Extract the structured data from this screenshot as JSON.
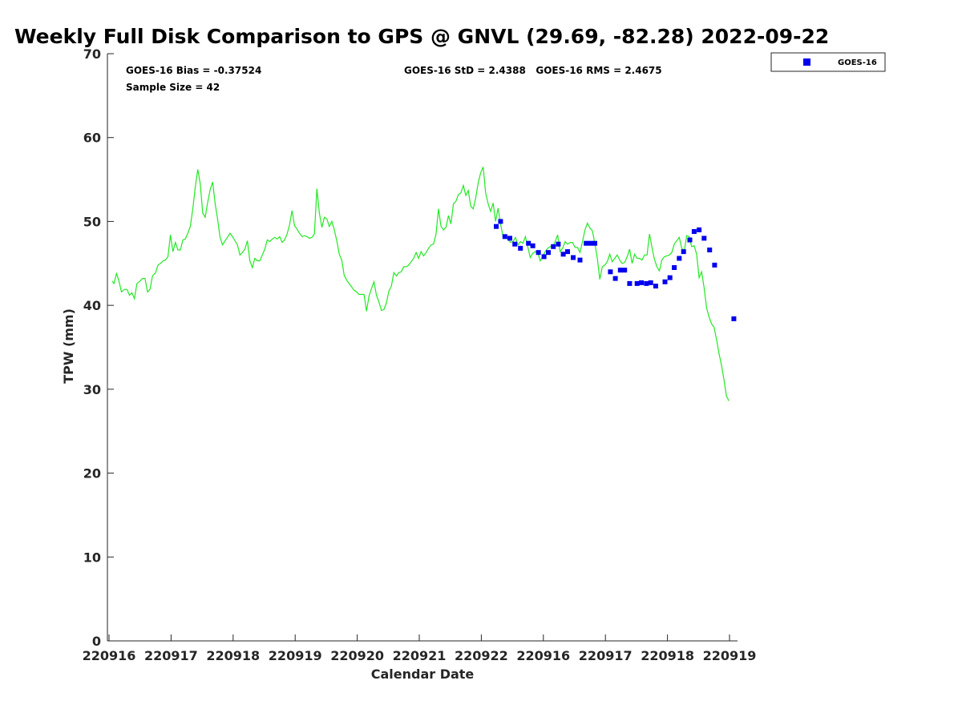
{
  "chart_data": {
    "type": "line",
    "title": "Weekly Full Disk Comparison to GPS @ GNVL (29.69, -82.28) 2022-09-22",
    "xlabel": "Calendar Date",
    "ylabel": "TPW (mm)",
    "ylim": [
      0,
      70
    ],
    "yticks": [
      0,
      10,
      20,
      30,
      40,
      50,
      60,
      70
    ],
    "xlim": [
      0,
      10.15
    ],
    "xticks": [
      {
        "v": 0,
        "label": "220916"
      },
      {
        "v": 1,
        "label": "220917"
      },
      {
        "v": 2,
        "label": "220918"
      },
      {
        "v": 3,
        "label": "220919"
      },
      {
        "v": 4,
        "label": "220920"
      },
      {
        "v": 5,
        "label": "220921"
      },
      {
        "v": 6,
        "label": "220922"
      },
      {
        "v": 7,
        "label": "220916"
      },
      {
        "v": 8,
        "label": "220917"
      },
      {
        "v": 9,
        "label": "220918"
      },
      {
        "v": 10,
        "label": "220919"
      }
    ],
    "stats": {
      "bias": "GOES-16 Bias = -0.37524",
      "std_rms": "GOES-16 StD = 2.4388   GOES-16 RMS = 2.4675",
      "sample": "Sample Size = 42"
    },
    "legend": {
      "label": "GOES-16",
      "position": "top-right"
    },
    "series": [
      {
        "name": "GPS",
        "color": "#22e822",
        "points": [
          [
            0.05,
            42.9
          ],
          [
            0.08,
            42.6
          ],
          [
            0.12,
            43.8
          ],
          [
            0.16,
            42.9
          ],
          [
            0.2,
            41.6
          ],
          [
            0.25,
            41.9
          ],
          [
            0.29,
            41.9
          ],
          [
            0.33,
            41.2
          ],
          [
            0.37,
            41.5
          ],
          [
            0.41,
            40.8
          ],
          [
            0.45,
            42.6
          ],
          [
            0.5,
            42.9
          ],
          [
            0.54,
            43.2
          ],
          [
            0.58,
            43.2
          ],
          [
            0.62,
            41.6
          ],
          [
            0.66,
            41.9
          ],
          [
            0.7,
            43.5
          ],
          [
            0.75,
            43.9
          ],
          [
            0.79,
            44.8
          ],
          [
            0.83,
            45.0
          ],
          [
            0.87,
            45.3
          ],
          [
            0.91,
            45.4
          ],
          [
            0.95,
            45.8
          ],
          [
            0.99,
            48.4
          ],
          [
            1.03,
            46.4
          ],
          [
            1.07,
            47.5
          ],
          [
            1.11,
            46.6
          ],
          [
            1.15,
            46.6
          ],
          [
            1.19,
            47.8
          ],
          [
            1.23,
            47.9
          ],
          [
            1.27,
            48.6
          ],
          [
            1.31,
            49.4
          ],
          [
            1.35,
            51.5
          ],
          [
            1.39,
            54.1
          ],
          [
            1.43,
            56.2
          ],
          [
            1.47,
            54.5
          ],
          [
            1.51,
            51.0
          ],
          [
            1.55,
            50.5
          ],
          [
            1.59,
            52.3
          ],
          [
            1.63,
            53.8
          ],
          [
            1.67,
            54.7
          ],
          [
            1.71,
            52.1
          ],
          [
            1.75,
            50.3
          ],
          [
            1.79,
            48.1
          ],
          [
            1.83,
            47.2
          ],
          [
            1.87,
            47.7
          ],
          [
            1.91,
            48.1
          ],
          [
            1.95,
            48.6
          ],
          [
            1.99,
            48.2
          ],
          [
            2.03,
            47.7
          ],
          [
            2.07,
            47.2
          ],
          [
            2.11,
            46.0
          ],
          [
            2.15,
            46.3
          ],
          [
            2.19,
            46.7
          ],
          [
            2.23,
            47.7
          ],
          [
            2.27,
            45.3
          ],
          [
            2.31,
            44.5
          ],
          [
            2.35,
            45.6
          ],
          [
            2.39,
            45.3
          ],
          [
            2.43,
            45.3
          ],
          [
            2.47,
            46.0
          ],
          [
            2.51,
            46.7
          ],
          [
            2.55,
            47.8
          ],
          [
            2.59,
            47.6
          ],
          [
            2.63,
            47.9
          ],
          [
            2.67,
            48.1
          ],
          [
            2.71,
            47.9
          ],
          [
            2.75,
            48.2
          ],
          [
            2.79,
            47.5
          ],
          [
            2.83,
            47.8
          ],
          [
            2.87,
            48.5
          ],
          [
            2.91,
            49.6
          ],
          [
            2.95,
            51.3
          ],
          [
            2.99,
            49.5
          ],
          [
            3.03,
            49.1
          ],
          [
            3.07,
            48.6
          ],
          [
            3.11,
            48.2
          ],
          [
            3.15,
            48.3
          ],
          [
            3.19,
            48.2
          ],
          [
            3.23,
            48.0
          ],
          [
            3.27,
            48.1
          ],
          [
            3.31,
            48.5
          ],
          [
            3.35,
            53.9
          ],
          [
            3.39,
            51.0
          ],
          [
            3.43,
            49.3
          ],
          [
            3.47,
            50.5
          ],
          [
            3.51,
            50.3
          ],
          [
            3.55,
            49.4
          ],
          [
            3.59,
            50.0
          ],
          [
            3.63,
            49.0
          ],
          [
            3.67,
            47.7
          ],
          [
            3.71,
            46.1
          ],
          [
            3.75,
            45.4
          ],
          [
            3.79,
            43.6
          ],
          [
            3.83,
            43.0
          ],
          [
            3.87,
            42.6
          ],
          [
            3.91,
            42.2
          ],
          [
            3.95,
            41.8
          ],
          [
            3.99,
            41.6
          ],
          [
            4.03,
            41.3
          ],
          [
            4.07,
            41.3
          ],
          [
            4.11,
            41.3
          ],
          [
            4.15,
            39.3
          ],
          [
            4.19,
            41.1
          ],
          [
            4.23,
            42.0
          ],
          [
            4.27,
            42.8
          ],
          [
            4.31,
            41.2
          ],
          [
            4.35,
            40.4
          ],
          [
            4.39,
            39.4
          ],
          [
            4.43,
            39.5
          ],
          [
            4.47,
            40.3
          ],
          [
            4.51,
            41.7
          ],
          [
            4.55,
            42.3
          ],
          [
            4.59,
            43.9
          ],
          [
            4.63,
            43.5
          ],
          [
            4.67,
            43.9
          ],
          [
            4.71,
            44.0
          ],
          [
            4.75,
            44.6
          ],
          [
            4.79,
            44.6
          ],
          [
            4.83,
            44.8
          ],
          [
            4.87,
            45.2
          ],
          [
            4.91,
            45.6
          ],
          [
            4.95,
            46.3
          ],
          [
            4.99,
            45.6
          ],
          [
            5.03,
            46.4
          ],
          [
            5.07,
            45.9
          ],
          [
            5.11,
            46.3
          ],
          [
            5.15,
            46.8
          ],
          [
            5.19,
            47.2
          ],
          [
            5.23,
            47.3
          ],
          [
            5.27,
            48.5
          ],
          [
            5.31,
            51.5
          ],
          [
            5.35,
            49.4
          ],
          [
            5.39,
            49.0
          ],
          [
            5.43,
            49.3
          ],
          [
            5.47,
            50.7
          ],
          [
            5.51,
            49.7
          ],
          [
            5.55,
            52.1
          ],
          [
            5.59,
            52.4
          ],
          [
            5.63,
            53.2
          ],
          [
            5.67,
            53.4
          ],
          [
            5.71,
            54.3
          ],
          [
            5.75,
            53.1
          ],
          [
            5.79,
            53.7
          ],
          [
            5.83,
            51.8
          ],
          [
            5.87,
            51.5
          ],
          [
            5.91,
            52.8
          ],
          [
            5.95,
            54.6
          ],
          [
            5.99,
            55.8
          ],
          [
            6.03,
            56.5
          ],
          [
            6.07,
            53.4
          ],
          [
            6.11,
            52.1
          ],
          [
            6.15,
            51.2
          ],
          [
            6.19,
            52.2
          ],
          [
            6.23,
            50.0
          ],
          [
            6.27,
            51.6
          ],
          [
            6.31,
            49.7
          ],
          [
            6.35,
            48.2
          ],
          [
            6.39,
            48.0
          ],
          [
            6.43,
            47.9
          ],
          [
            6.47,
            47.5
          ],
          [
            6.51,
            47.6
          ],
          [
            6.55,
            48.1
          ],
          [
            6.59,
            47.2
          ],
          [
            6.63,
            47.6
          ],
          [
            6.67,
            47.4
          ],
          [
            6.71,
            48.2
          ],
          [
            6.75,
            46.9
          ],
          [
            6.79,
            45.7
          ],
          [
            6.83,
            46.2
          ],
          [
            6.87,
            46.4
          ],
          [
            6.91,
            46.3
          ],
          [
            6.95,
            45.3
          ],
          [
            6.99,
            45.8
          ],
          [
            7.03,
            46.4
          ],
          [
            7.07,
            46.8
          ],
          [
            7.11,
            47.0
          ],
          [
            7.15,
            46.9
          ],
          [
            7.19,
            47.6
          ],
          [
            7.23,
            48.4
          ],
          [
            7.27,
            46.4
          ],
          [
            7.31,
            46.8
          ],
          [
            7.35,
            47.6
          ],
          [
            7.39,
            47.3
          ],
          [
            7.43,
            47.5
          ],
          [
            7.47,
            47.5
          ],
          [
            7.51,
            46.9
          ],
          [
            7.55,
            46.9
          ],
          [
            7.59,
            46.3
          ],
          [
            7.63,
            47.6
          ],
          [
            7.67,
            49.0
          ],
          [
            7.71,
            49.8
          ],
          [
            7.75,
            49.2
          ],
          [
            7.79,
            48.9
          ],
          [
            7.83,
            47.4
          ],
          [
            7.87,
            45.6
          ],
          [
            7.91,
            43.1
          ],
          [
            7.95,
            44.6
          ],
          [
            7.99,
            44.8
          ],
          [
            8.03,
            45.2
          ],
          [
            8.07,
            46.1
          ],
          [
            8.11,
            45.2
          ],
          [
            8.15,
            45.6
          ],
          [
            8.19,
            46.0
          ],
          [
            8.23,
            45.4
          ],
          [
            8.27,
            45.0
          ],
          [
            8.31,
            45.1
          ],
          [
            8.35,
            45.8
          ],
          [
            8.39,
            46.7
          ],
          [
            8.43,
            45.0
          ],
          [
            8.47,
            46.1
          ],
          [
            8.51,
            45.6
          ],
          [
            8.55,
            45.6
          ],
          [
            8.59,
            45.4
          ],
          [
            8.63,
            46.0
          ],
          [
            8.67,
            46.0
          ],
          [
            8.71,
            48.5
          ],
          [
            8.75,
            46.9
          ],
          [
            8.79,
            45.5
          ],
          [
            8.83,
            44.6
          ],
          [
            8.87,
            44.1
          ],
          [
            8.91,
            45.4
          ],
          [
            8.95,
            45.8
          ],
          [
            8.99,
            45.9
          ],
          [
            9.03,
            46.0
          ],
          [
            9.07,
            46.3
          ],
          [
            9.11,
            47.3
          ],
          [
            9.15,
            47.7
          ],
          [
            9.19,
            48.1
          ],
          [
            9.23,
            46.8
          ],
          [
            9.27,
            46.4
          ],
          [
            9.31,
            48.3
          ],
          [
            9.35,
            48.2
          ],
          [
            9.39,
            47.0
          ],
          [
            9.43,
            47.1
          ],
          [
            9.47,
            46.1
          ],
          [
            9.51,
            43.3
          ],
          [
            9.55,
            44.0
          ],
          [
            9.59,
            42.1
          ],
          [
            9.63,
            39.7
          ],
          [
            9.67,
            38.6
          ],
          [
            9.71,
            37.8
          ],
          [
            9.75,
            37.4
          ],
          [
            9.79,
            36.0
          ],
          [
            9.83,
            34.3
          ],
          [
            9.87,
            32.9
          ],
          [
            9.91,
            31.2
          ],
          [
            9.95,
            29.2
          ],
          [
            9.99,
            28.6
          ]
        ]
      },
      {
        "name": "GOES-16",
        "color": "#0000ee",
        "points": [
          [
            6.24,
            49.4
          ],
          [
            6.31,
            50.0
          ],
          [
            6.38,
            48.2
          ],
          [
            6.46,
            48.0
          ],
          [
            6.54,
            47.3
          ],
          [
            6.63,
            46.8
          ],
          [
            6.76,
            47.4
          ],
          [
            6.83,
            47.1
          ],
          [
            6.92,
            46.3
          ],
          [
            7.01,
            45.8
          ],
          [
            7.08,
            46.3
          ],
          [
            7.16,
            47.0
          ],
          [
            7.24,
            47.3
          ],
          [
            7.32,
            46.1
          ],
          [
            7.39,
            46.4
          ],
          [
            7.48,
            45.7
          ],
          [
            7.59,
            45.4
          ],
          [
            7.69,
            47.4
          ],
          [
            7.76,
            47.4
          ],
          [
            7.83,
            47.4
          ],
          [
            8.08,
            44.0
          ],
          [
            8.16,
            43.2
          ],
          [
            8.24,
            44.2
          ],
          [
            8.31,
            44.2
          ],
          [
            8.39,
            42.6
          ],
          [
            8.51,
            42.6
          ],
          [
            8.58,
            42.7
          ],
          [
            8.66,
            42.6
          ],
          [
            8.73,
            42.7
          ],
          [
            8.81,
            42.3
          ],
          [
            8.96,
            42.8
          ],
          [
            9.04,
            43.3
          ],
          [
            9.11,
            44.5
          ],
          [
            9.19,
            45.6
          ],
          [
            9.26,
            46.4
          ],
          [
            9.36,
            47.8
          ],
          [
            9.43,
            48.8
          ],
          [
            9.51,
            49.0
          ],
          [
            9.59,
            48.0
          ],
          [
            9.68,
            46.6
          ],
          [
            9.76,
            44.8
          ],
          [
            10.07,
            38.4
          ]
        ]
      }
    ]
  }
}
